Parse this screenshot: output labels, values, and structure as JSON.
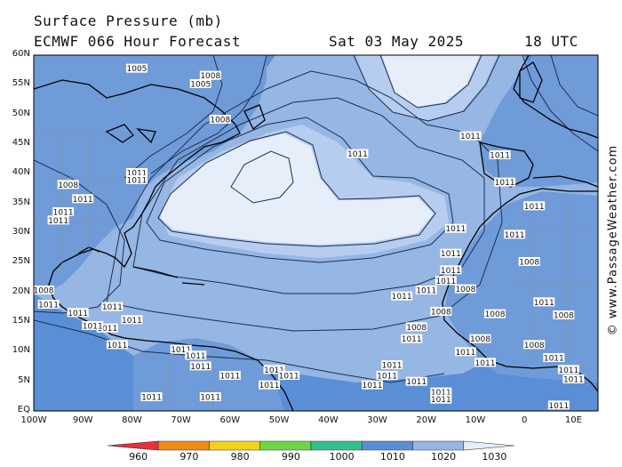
{
  "header": {
    "title": "Surface Pressure (mb)",
    "model": "ECMWF 066 Hour Forecast",
    "date": "Sat 03 May 2025",
    "time": "18 UTC"
  },
  "credit": "© www.PassageWeather.com",
  "axes": {
    "lat_labels": [
      "60N",
      "55N",
      "50N",
      "45N",
      "40N",
      "35N",
      "30N",
      "25N",
      "20N",
      "15N",
      "10N",
      "5N",
      "EQ"
    ],
    "lon_labels": [
      "100W",
      "90W",
      "80W",
      "70W",
      "60W",
      "50W",
      "40W",
      "30W",
      "20W",
      "10W",
      "0",
      "10E"
    ]
  },
  "colorbar": {
    "labels": [
      "960",
      "970",
      "980",
      "990",
      "1000",
      "1010",
      "1020",
      "1030"
    ],
    "colors": [
      "#e8303a",
      "#f08a1a",
      "#f2d21a",
      "#6ed64a",
      "#34c08c",
      "#5a8fd6",
      "#96b6e4",
      "#e6eefa"
    ]
  },
  "pressure_labels": [
    {
      "text": "1005",
      "lon": -79,
      "lat": 57.8
    },
    {
      "text": "1008",
      "lon": -64,
      "lat": 56.6
    },
    {
      "text": "1005",
      "lon": -66,
      "lat": 55.2
    },
    {
      "text": "1008",
      "lon": -62,
      "lat": 49.2
    },
    {
      "text": "1011",
      "lon": -34,
      "lat": 43.4
    },
    {
      "text": "1011",
      "lon": -11,
      "lat": 46.4
    },
    {
      "text": "1011",
      "lon": -79,
      "lat": 40.2
    },
    {
      "text": "1011",
      "lon": -79,
      "lat": 39.0
    },
    {
      "text": "1008",
      "lon": -93,
      "lat": 38.2
    },
    {
      "text": "1011",
      "lon": -90,
      "lat": 35.8
    },
    {
      "text": "1011",
      "lon": -94,
      "lat": 33.6
    },
    {
      "text": "1011",
      "lon": -95,
      "lat": 32.2
    },
    {
      "text": "1011",
      "lon": -5,
      "lat": 43.2
    },
    {
      "text": "1011",
      "lon": -4,
      "lat": 38.6
    },
    {
      "text": "1011",
      "lon": 2,
      "lat": 34.6
    },
    {
      "text": "1011",
      "lon": -14,
      "lat": 30.8
    },
    {
      "text": "1011",
      "lon": -2,
      "lat": 29.8
    },
    {
      "text": "1011",
      "lon": -15,
      "lat": 26.6
    },
    {
      "text": "1008",
      "lon": 1,
      "lat": 25.2
    },
    {
      "text": "1011",
      "lon": -15,
      "lat": 23.8
    },
    {
      "text": "1011",
      "lon": -16,
      "lat": 22.0
    },
    {
      "text": "1011",
      "lon": -20,
      "lat": 20.4
    },
    {
      "text": "1011",
      "lon": -25,
      "lat": 19.4
    },
    {
      "text": "1008",
      "lon": -12,
      "lat": 20.6
    },
    {
      "text": "1011",
      "lon": 4,
      "lat": 18.4
    },
    {
      "text": "1008",
      "lon": -17,
      "lat": 16.8
    },
    {
      "text": "1008",
      "lon": -6,
      "lat": 16.4
    },
    {
      "text": "1008",
      "lon": 8,
      "lat": 16.2
    },
    {
      "text": "1008",
      "lon": -22,
      "lat": 14.2
    },
    {
      "text": "1008",
      "lon": -9,
      "lat": 12.2
    },
    {
      "text": "1011",
      "lon": -23,
      "lat": 12.2
    },
    {
      "text": "1011",
      "lon": -12,
      "lat": 10.0
    },
    {
      "text": "1011",
      "lon": -27,
      "lat": 7.8
    },
    {
      "text": "1011",
      "lon": -28,
      "lat": 6.0
    },
    {
      "text": "1011",
      "lon": -31,
      "lat": 4.4
    },
    {
      "text": "1011",
      "lon": -22,
      "lat": 5.0
    },
    {
      "text": "1011",
      "lon": -17,
      "lat": 3.2
    },
    {
      "text": "1011",
      "lon": -17,
      "lat": 2.0
    },
    {
      "text": "1011",
      "lon": -51,
      "lat": 7.0
    },
    {
      "text": "1011",
      "lon": -48,
      "lat": 6.0
    },
    {
      "text": "1011",
      "lon": -70,
      "lat": 10.4
    },
    {
      "text": "1011",
      "lon": -67,
      "lat": 9.4
    },
    {
      "text": "1011",
      "lon": -66,
      "lat": 7.6
    },
    {
      "text": "1011",
      "lon": -60,
      "lat": 6.0
    },
    {
      "text": "1011",
      "lon": -52,
      "lat": 4.4
    },
    {
      "text": "1011",
      "lon": -84,
      "lat": 17.6
    },
    {
      "text": "1011",
      "lon": -80,
      "lat": 15.4
    },
    {
      "text": "1011",
      "lon": -85,
      "lat": 14.0
    },
    {
      "text": "1011",
      "lon": -83,
      "lat": 11.2
    },
    {
      "text": "1011",
      "lon": -76,
      "lat": 2.4
    },
    {
      "text": "1008",
      "lon": -98,
      "lat": 20.4
    },
    {
      "text": "1011",
      "lon": -97,
      "lat": 18.0
    },
    {
      "text": "1011",
      "lon": -91,
      "lat": 16.6
    },
    {
      "text": "1011",
      "lon": -88,
      "lat": 14.4
    },
    {
      "text": "1011",
      "lon": -64,
      "lat": 2.4
    },
    {
      "text": "1008",
      "lon": 2,
      "lat": 11.2
    },
    {
      "text": "1011",
      "lon": 6,
      "lat": 9.0
    },
    {
      "text": "1011",
      "lon": 9,
      "lat": 7.0
    },
    {
      "text": "1011",
      "lon": 10,
      "lat": 5.4
    },
    {
      "text": "1011",
      "lon": 7,
      "lat": 1.0
    },
    {
      "text": "1011",
      "lon": -8,
      "lat": 8.2
    }
  ]
}
